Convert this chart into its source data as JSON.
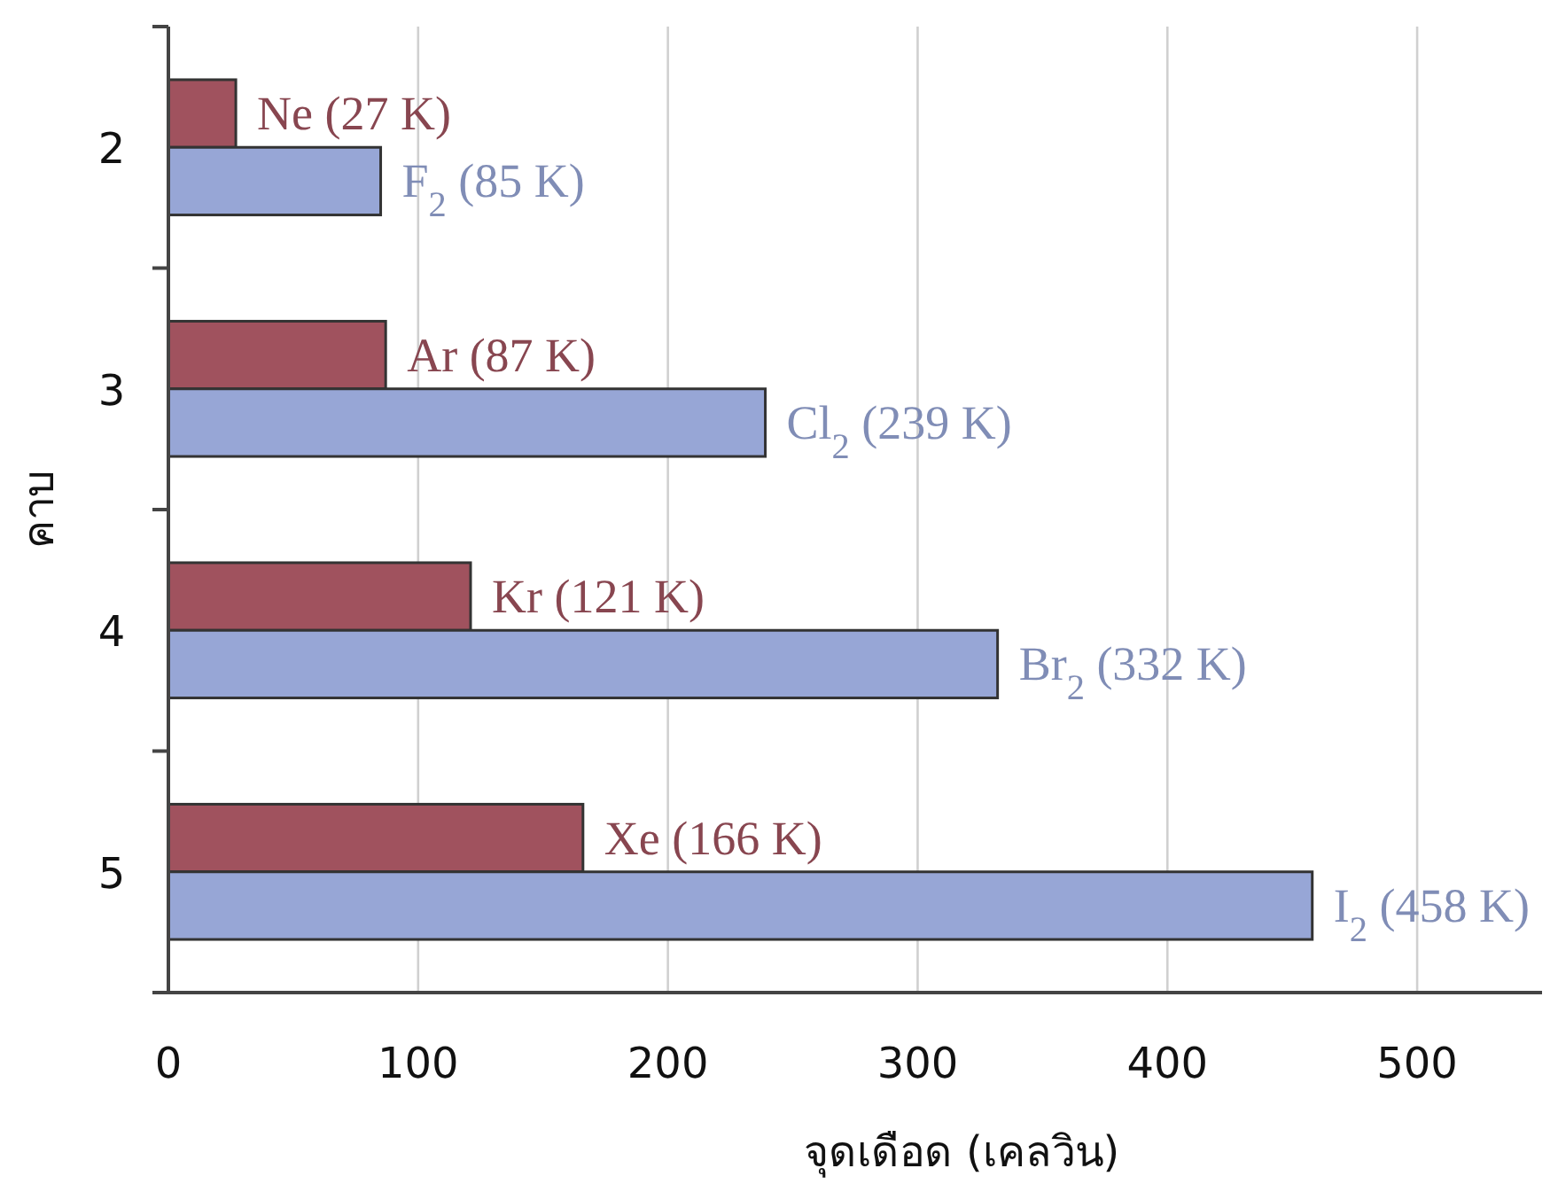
{
  "chart_data": {
    "type": "bar",
    "orientation": "horizontal",
    "categories": [
      "2",
      "3",
      "4",
      "5"
    ],
    "xlabel": "จุดเดือด (เคลวิน)",
    "ylabel": "คาบ",
    "xlim": [
      0,
      550
    ],
    "xticks": [
      0,
      100,
      200,
      300,
      400,
      500
    ],
    "grid": "x",
    "series": [
      {
        "color": "#a0525e",
        "values": [
          27,
          87,
          121,
          166
        ],
        "value_labels": [
          "Ne (27 K)",
          "Ar (87 K)",
          "Kr (121 K)",
          "Xe (166 K)"
        ]
      },
      {
        "color": "#97a6d6",
        "values": [
          85,
          239,
          332,
          458
        ],
        "value_labels": [
          "F$_{2}$ (85 K)",
          "Cl$_{2}$ (239 K)",
          "Br$_{2}$ (332 K)",
          "I$_{2}$ (458 K)"
        ]
      }
    ]
  }
}
